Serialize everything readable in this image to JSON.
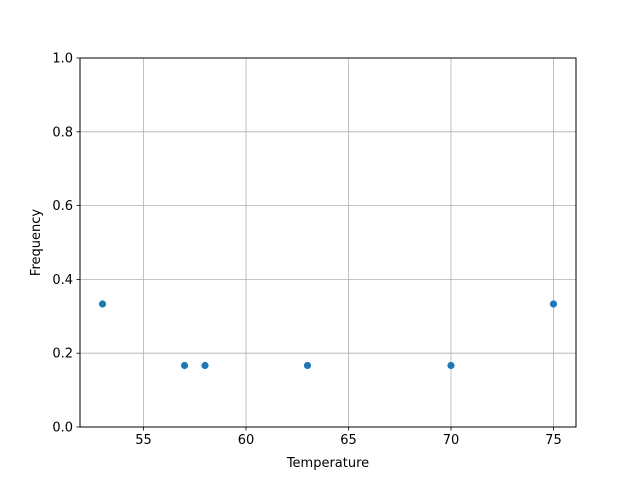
{
  "chart_data": {
    "type": "scatter",
    "title": "",
    "xlabel": "Temperature",
    "ylabel": "Frequency",
    "xlim": [
      51.9,
      76.1
    ],
    "ylim": [
      0,
      1.0
    ],
    "xticks": [
      55,
      60,
      65,
      70,
      75
    ],
    "xtick_labels": [
      "55",
      "60",
      "65",
      "70",
      "75"
    ],
    "yticks": [
      0,
      0.2,
      0.4,
      0.6,
      0.8,
      1.0
    ],
    "ytick_labels": [
      "0.0",
      "0.2",
      "0.4",
      "0.6",
      "0.8",
      "1.0"
    ],
    "grid": true,
    "marker_color": "#1f77b4",
    "x": [
      53,
      57,
      58,
      63,
      70,
      75
    ],
    "y": [
      0.3333,
      0.1667,
      0.1667,
      0.1667,
      0.1667,
      0.3333
    ]
  }
}
